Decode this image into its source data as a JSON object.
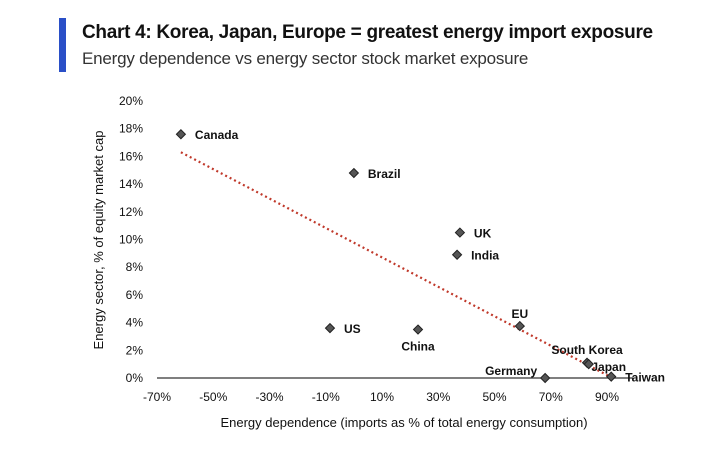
{
  "header": {
    "title": "Chart 4: Korea, Japan, Europe = greatest energy import exposure",
    "subtitle": "Energy dependence vs energy sector stock market exposure",
    "accent_color": "#2a4fc7"
  },
  "chart_data": {
    "type": "scatter",
    "title": "Chart 4: Korea, Japan, Europe = greatest energy import exposure",
    "subtitle": "Energy dependence vs energy sector stock market exposure",
    "xlabel": "Energy dependence (imports as % of total energy consumption)",
    "ylabel": "Energy sector, % of equity market cap",
    "xlim": [
      -70,
      95
    ],
    "ylim": [
      0,
      20
    ],
    "xticks": [
      -70,
      -50,
      -30,
      -10,
      10,
      30,
      50,
      70,
      90
    ],
    "xtick_labels": [
      "-70%",
      "-50%",
      "-30%",
      "-10%",
      "10%",
      "30%",
      "50%",
      "70%",
      "90%"
    ],
    "yticks": [
      0,
      2,
      4,
      6,
      8,
      10,
      12,
      14,
      16,
      18,
      20
    ],
    "ytick_labels": [
      "0%",
      "2%",
      "4%",
      "6%",
      "8%",
      "10%",
      "12%",
      "14%",
      "16%",
      "18%",
      "20%"
    ],
    "grid": false,
    "marker_color": "#555555",
    "trendline_color": "#c0392b",
    "points": [
      {
        "label": "Canada",
        "x": -61.5,
        "y": 17.6
      },
      {
        "label": "Brazil",
        "x": 0,
        "y": 14.8
      },
      {
        "label": "UK",
        "x": 37.7,
        "y": 10.5
      },
      {
        "label": "India",
        "x": 36.7,
        "y": 8.9
      },
      {
        "label": "US",
        "x": -8.5,
        "y": 3.6
      },
      {
        "label": "China",
        "x": 22.8,
        "y": 3.5
      },
      {
        "label": "EU",
        "x": 59,
        "y": 3.75
      },
      {
        "label": "South Korea",
        "x": 82.9,
        "y": 1.1
      },
      {
        "label": "Japan",
        "x": 83.5,
        "y": 1.0
      },
      {
        "label": "Germany",
        "x": 68,
        "y": 0
      },
      {
        "label": "Taiwan",
        "x": 91.5,
        "y": 0.1
      }
    ],
    "trendline": {
      "type": "linear",
      "x": [
        -61.5,
        92
      ],
      "y": [
        16.3,
        0
      ]
    }
  }
}
